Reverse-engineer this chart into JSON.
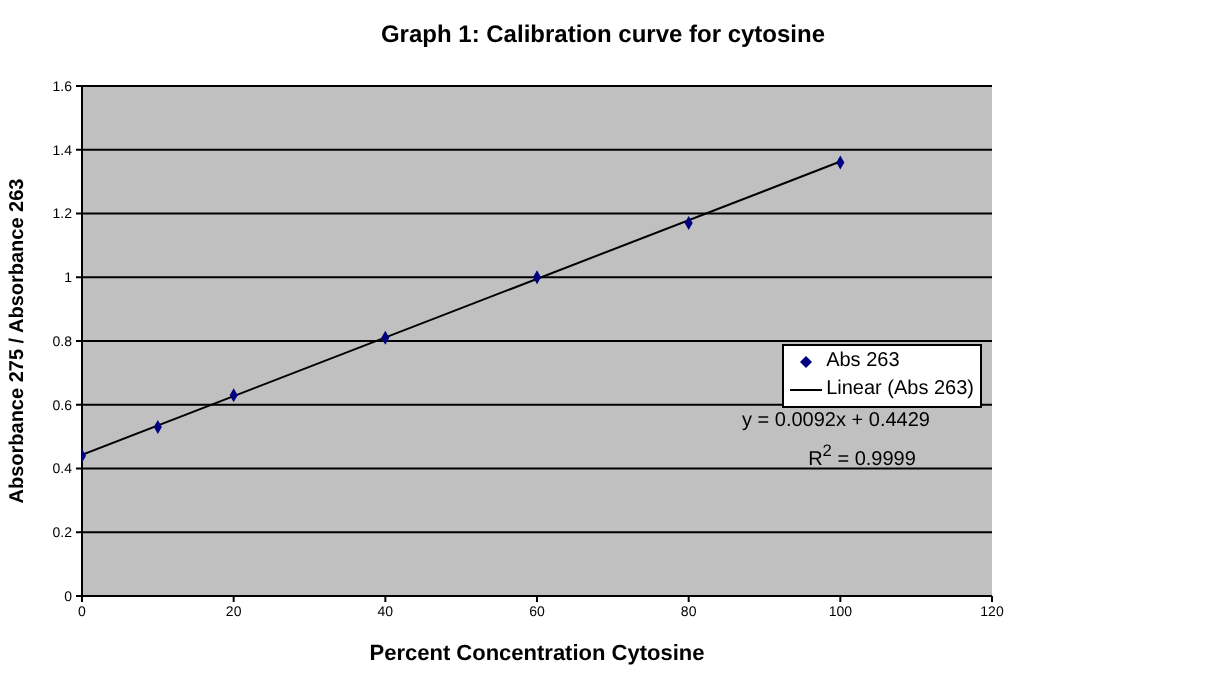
{
  "chart_data": {
    "type": "scatter",
    "title": "Graph 1: Calibration curve for cytosine",
    "xlabel": "Percent Concentration Cytosine",
    "ylabel": "Absorbance 275 / Absorbance 263",
    "x": [
      0,
      10,
      20,
      40,
      60,
      80,
      100
    ],
    "series": [
      {
        "name": "Abs 263",
        "type": "scatter",
        "color": "#000080",
        "marker": "diamond",
        "values": [
          0.44,
          0.53,
          0.63,
          0.81,
          1.0,
          1.17,
          1.36
        ]
      },
      {
        "name": "Linear (Abs 263)",
        "type": "line",
        "color": "#000000",
        "marker": "none",
        "line_style": "solid",
        "x": [
          0,
          100
        ],
        "values": [
          0.443,
          1.363
        ]
      }
    ],
    "xlim": [
      0,
      120
    ],
    "xticks": [
      0,
      20,
      40,
      60,
      80,
      100,
      120
    ],
    "ylim": [
      0,
      1.6
    ],
    "yticks": [
      0,
      0.2,
      0.4,
      0.6,
      0.8,
      1,
      1.2,
      1.4,
      1.6
    ],
    "grid": "y",
    "legend": "right",
    "annotations": [
      "y = 0.0092x + 0.4429",
      "R$^{2}$ = 0.9999"
    ]
  }
}
